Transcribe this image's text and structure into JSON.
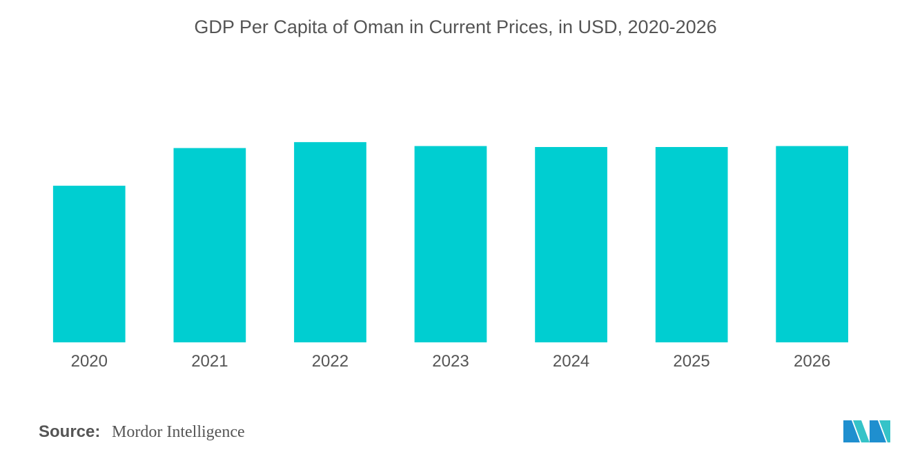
{
  "chart_data": {
    "type": "bar",
    "title": "GDP Per Capita of Oman in Current Prices, in USD, 2020-2026",
    "xlabel": "",
    "ylabel": "",
    "categories": [
      "2020",
      "2021",
      "2022",
      "2023",
      "2024",
      "2025",
      "2026"
    ],
    "values": [
      0.79,
      0.98,
      1.01,
      0.99,
      0.985,
      0.985,
      0.99
    ],
    "ylim": [
      0,
      1.1
    ],
    "grid": false,
    "legend": "none",
    "bar_color": "#00CED1"
  },
  "source": {
    "label": "Source:",
    "value": "Mordor Intelligence"
  },
  "logo": {
    "icon": "mordor-intelligence-logo-icon",
    "colors": [
      "#1f8fcf",
      "#35c3c8"
    ]
  }
}
